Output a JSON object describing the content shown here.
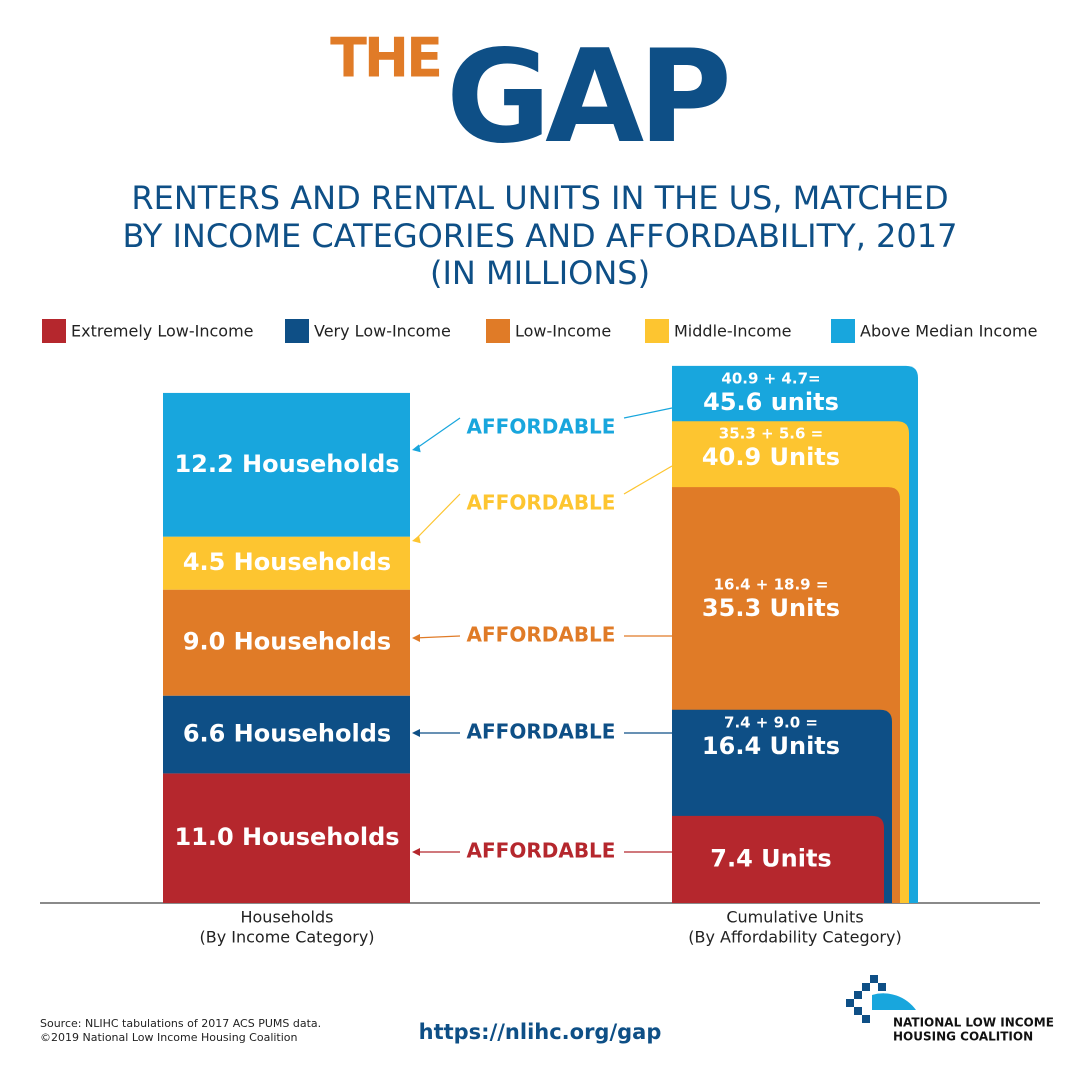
{
  "chart_data": {
    "type": "gap",
    "title_part1": "THE",
    "title_part2": "GAP",
    "subtitle": [
      "RENTERS AND RENTAL UNITS IN THE US, MATCHED",
      "BY INCOME CATEGORIES AND AFFORDABILITY, 2017",
      "(IN MILLIONS)"
    ],
    "categories": [
      "Extremely Low-Income",
      "Very Low-Income",
      "Low-Income",
      "Middle-Income",
      "Above Median Income"
    ],
    "colors": [
      "#b5272d",
      "#0e4f86",
      "#e07b27",
      "#fdc530",
      "#18a6dd"
    ],
    "series": [
      {
        "name": "Households",
        "subname": "(By Income Category)",
        "values": [
          11.0,
          6.6,
          9.0,
          4.5,
          12.2
        ],
        "value_labels": [
          "11.0 Households",
          "6.6 Households",
          "9.0 Households",
          "4.5 Households",
          "12.2 Households"
        ]
      },
      {
        "name": "Cumulative Units",
        "subname": "(By Affordability Category)",
        "values": [
          7.4,
          16.4,
          35.3,
          40.9,
          45.6
        ],
        "value_labels": [
          "7.4 Units",
          "16.4 Units",
          "35.3 Units",
          "40.9 Units",
          "45.6 units"
        ],
        "formula_labels": [
          null,
          "7.4 + 9.0 =",
          "16.4 + 18.9 =",
          "35.3 + 5.6 =",
          "40.9 + 4.7="
        ]
      }
    ],
    "annotations": [
      "AFFORDABLE",
      "AFFORDABLE",
      "AFFORDABLE",
      "AFFORDABLE",
      "AFFORDABLE"
    ],
    "source": [
      "Source: NLIHC tabulations of 2017 ACS PUMS data.",
      "©2019 National Low Income Housing Coalition"
    ],
    "url": "https://nlihc.org/gap",
    "organization": [
      "NATIONAL LOW INCOME",
      "HOUSING COALITION"
    ]
  }
}
